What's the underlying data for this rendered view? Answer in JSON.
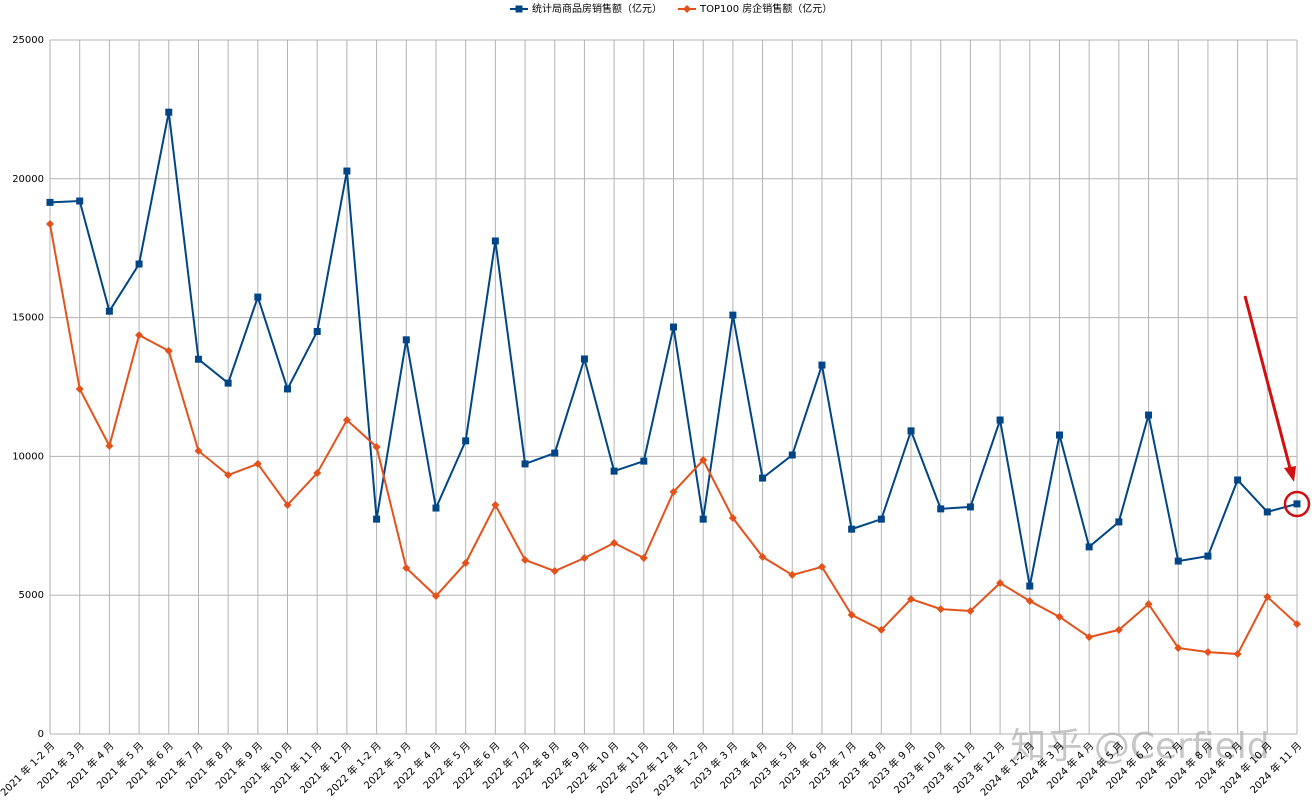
{
  "chart_data": {
    "type": "line",
    "categories": [
      "2021 年 1-2 月",
      "2021 年 3 月",
      "2021 年 4 月",
      "2021 年 5 月",
      "2021 年 6 月",
      "2021 年 7 月",
      "2021 年 8 月",
      "2021 年 9 月",
      "2021 年 10 月",
      "2021 年 11 月",
      "2021 年 12 月",
      "2022 年 1-2 月",
      "2022 年 3 月",
      "2022 年 4 月",
      "2022 年 5 月",
      "2022 年 6 月",
      "2022 年 7 月",
      "2022 年 8 月",
      "2022 年 9 月",
      "2022 年 10 月",
      "2022 年 11 月",
      "2022 年 12 月",
      "2023 年 1-2 月",
      "2023 年 3 月",
      "2023 年 4 月",
      "2023 年 5 月",
      "2023 年 6 月",
      "2023 年 7 月",
      "2023 年 8 月",
      "2023 年 9 月",
      "2023 年 10 月",
      "2023 年 11 月",
      "2023 年 12 月",
      "2024 年 1-2 月",
      "2024 年 3 月",
      "2024 年 4 月",
      "2024 年 5 月",
      "2024 年 6 月",
      "2024 年 7 月",
      "2024 年 8 月",
      "2024 年 9 月",
      "2024 年 10 月",
      "2024 年 11 月"
    ],
    "series": [
      {
        "name": "统计局商品房销售额（亿元）",
        "color": "#004586",
        "marker": "square",
        "values": [
          19150,
          19200,
          15230,
          16930,
          22400,
          13500,
          12640,
          15740,
          12430,
          14500,
          20280,
          7740,
          14200,
          8140,
          10560,
          17760,
          9730,
          10120,
          13510,
          9470,
          9830,
          14660,
          7740,
          15090,
          9220,
          10050,
          13290,
          7380,
          7740,
          10920,
          8110,
          8180,
          11310,
          5330,
          10770,
          6740,
          7640,
          11490,
          6230,
          6410,
          9150,
          8000,
          8290
        ]
      },
      {
        "name": "TOP100 房企销售额（亿元）",
        "color": "#e4521c",
        "marker": "diamond",
        "values": [
          18370,
          12430,
          10380,
          14370,
          13800,
          10200,
          9330,
          9730,
          8250,
          9400,
          11310,
          10340,
          5980,
          4970,
          6160,
          8250,
          6270,
          5870,
          6340,
          6880,
          6340,
          8720,
          9870,
          7780,
          6380,
          5730,
          6020,
          4290,
          3750,
          4860,
          4500,
          4430,
          5440,
          4790,
          4220,
          3490,
          3750,
          4680,
          3100,
          2950,
          2880,
          4940,
          3960
        ]
      }
    ],
    "ylim": [
      0,
      25000
    ],
    "yticks": [
      0,
      5000,
      10000,
      15000,
      20000,
      25000
    ],
    "grid": true,
    "legend": "top",
    "watermark": "知乎 @Cerfield"
  }
}
